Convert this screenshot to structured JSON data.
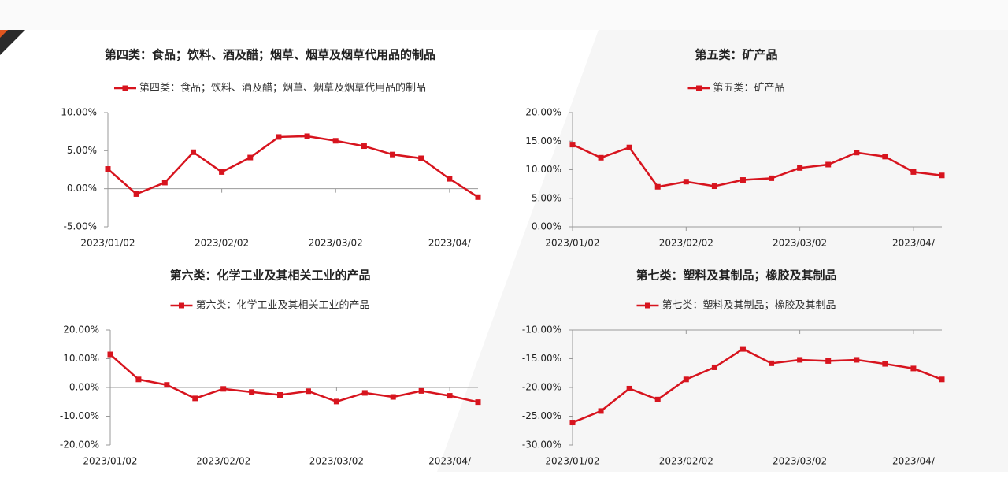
{
  "chart_data": [
    {
      "type": "line",
      "title": "第四类：食品；饮料、酒及醋；烟草、烟草及烟草代用品的制品",
      "categories": [
        "2023/01/02",
        null,
        null,
        null,
        "2023/02/02",
        null,
        null,
        null,
        "2023/03/02",
        null,
        null,
        null,
        "2023/04/",
        null
      ],
      "series": [
        {
          "name": "第四类：食品；饮料、酒及醋；烟草、烟草及烟草代用品的制品",
          "color": "#d7141e",
          "values": [
            2.6,
            -0.7,
            0.8,
            4.8,
            2.2,
            4.1,
            6.8,
            6.9,
            6.3,
            5.6,
            4.5,
            4.0,
            1.3,
            -1.1
          ]
        }
      ],
      "ylim": [
        -5,
        10
      ],
      "yticks": [
        {
          "value": -5,
          "label": "-5.00%"
        },
        {
          "value": 0,
          "label": "0.00%"
        },
        {
          "value": 5,
          "label": "5.00%"
        },
        {
          "value": 10,
          "label": "10.00%"
        }
      ],
      "legend": "top"
    },
    {
      "type": "line",
      "title": "第五类：矿产品",
      "categories": [
        "2023/01/02",
        null,
        null,
        null,
        "2023/02/02",
        null,
        null,
        null,
        "2023/03/02",
        null,
        null,
        null,
        "2023/04/",
        null
      ],
      "series": [
        {
          "name": "第五类：矿产品",
          "color": "#d7141e",
          "values": [
            14.4,
            12.1,
            13.9,
            7.0,
            7.9,
            7.1,
            8.2,
            8.5,
            10.3,
            10.9,
            13.0,
            12.3,
            9.6,
            9.0
          ]
        }
      ],
      "ylim": [
        0,
        20
      ],
      "yticks": [
        {
          "value": 0,
          "label": "0.00%"
        },
        {
          "value": 5,
          "label": "5.00%"
        },
        {
          "value": 10,
          "label": "10.00%"
        },
        {
          "value": 15,
          "label": "15.00%"
        },
        {
          "value": 20,
          "label": "20.00%"
        }
      ],
      "legend": "top"
    },
    {
      "type": "line",
      "title": "第六类：化学工业及其相关工业的产品",
      "categories": [
        "2023/01/02",
        null,
        null,
        null,
        "2023/02/02",
        null,
        null,
        null,
        "2023/03/02",
        null,
        null,
        null,
        "2023/04/",
        null
      ],
      "series": [
        {
          "name": "第六类：化学工业及其相关工业的产品",
          "color": "#d7141e",
          "values": [
            11.5,
            2.8,
            0.9,
            -3.8,
            -0.5,
            -1.6,
            -2.6,
            -1.3,
            -4.9,
            -1.9,
            -3.3,
            -1.2,
            -2.9,
            -5.1
          ]
        }
      ],
      "ylim": [
        -20,
        20
      ],
      "yticks": [
        {
          "value": -20,
          "label": "-20.00%"
        },
        {
          "value": -10,
          "label": "-10.00%"
        },
        {
          "value": 0,
          "label": "0.00%"
        },
        {
          "value": 10,
          "label": "10.00%"
        },
        {
          "value": 20,
          "label": "20.00%"
        }
      ],
      "legend": "top"
    },
    {
      "type": "line",
      "title": "第七类：塑料及其制品；橡胶及其制品",
      "categories": [
        "2023/01/02",
        null,
        null,
        null,
        "2023/02/02",
        null,
        null,
        null,
        "2023/03/02",
        null,
        null,
        null,
        "2023/04/",
        null
      ],
      "series": [
        {
          "name": "第七类：塑料及其制品；橡胶及其制品",
          "color": "#d7141e",
          "values": [
            -26.1,
            -24.1,
            -20.2,
            -22.1,
            -18.6,
            -16.5,
            -13.3,
            -15.8,
            -15.2,
            -15.4,
            -15.2,
            -15.9,
            -16.7,
            -18.6
          ]
        }
      ],
      "ylim": [
        -30,
        -10
      ],
      "yticks": [
        {
          "value": -30,
          "label": "-30.00%"
        },
        {
          "value": -25,
          "label": "-25.00%"
        },
        {
          "value": -20,
          "label": "-20.00%"
        },
        {
          "value": -15,
          "label": "-15.00%"
        },
        {
          "value": -10,
          "label": "-10.00%"
        }
      ],
      "legend": "top"
    }
  ]
}
